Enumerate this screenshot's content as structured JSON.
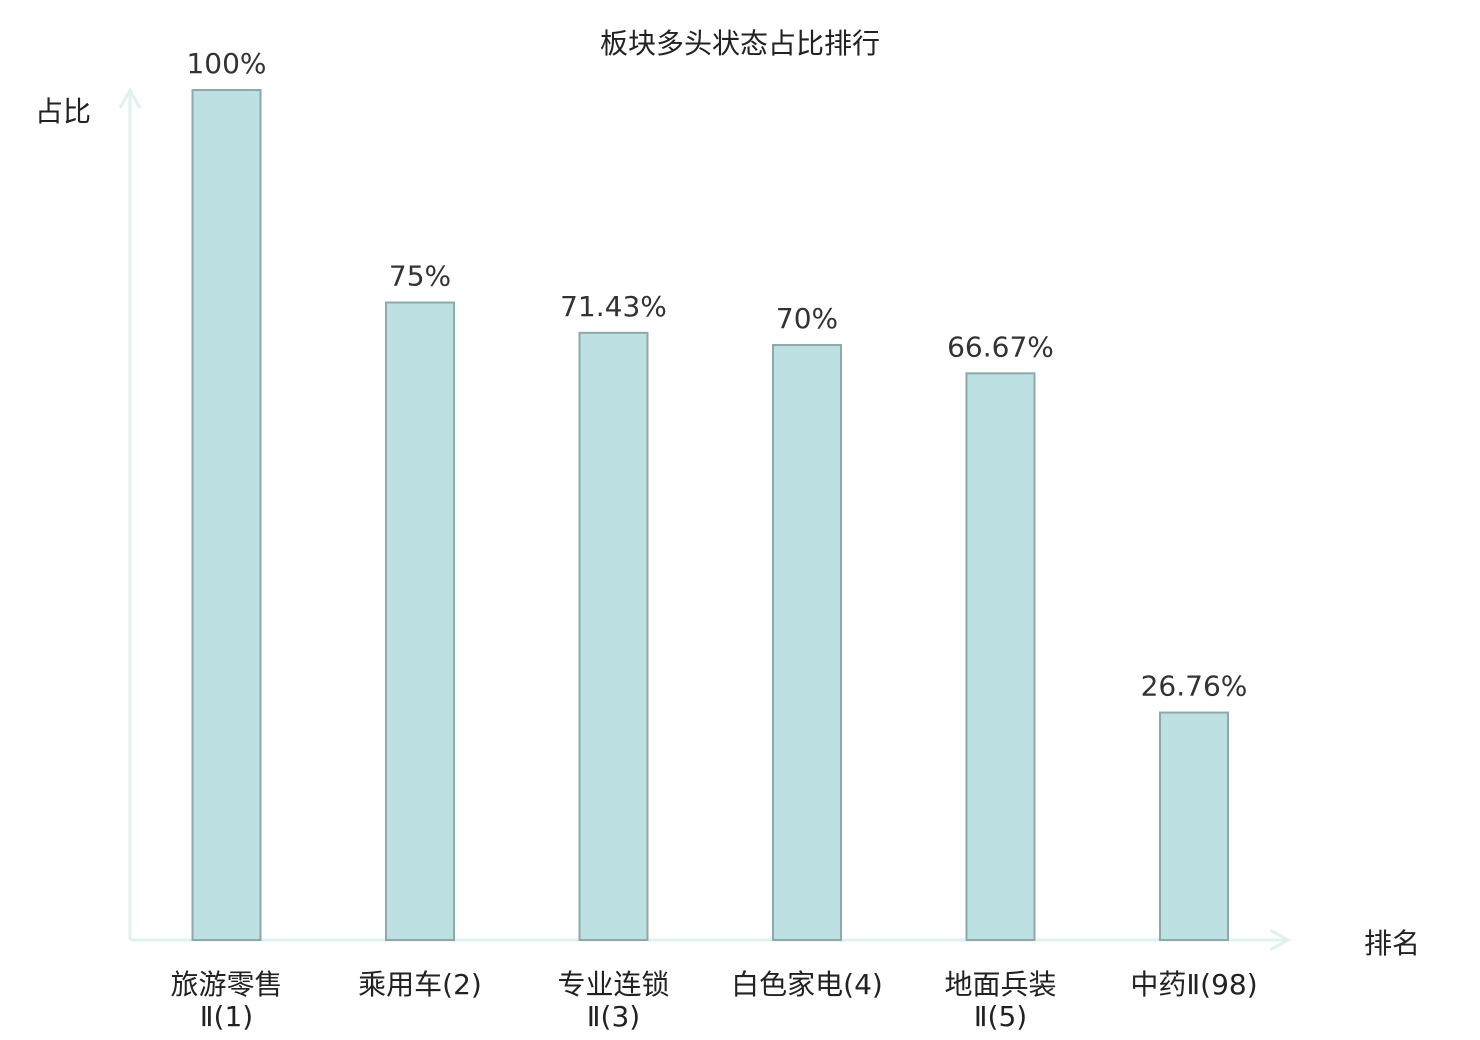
{
  "chart_data": {
    "type": "bar",
    "title": "板块多头状态占比排行",
    "xlabel": "排名",
    "ylabel": "占比",
    "ylim": [
      0,
      100
    ],
    "grid": false,
    "categories": [
      {
        "line1": "旅游零售",
        "line2": "Ⅱ(1)"
      },
      {
        "line1": "乘用车(2)",
        "line2": ""
      },
      {
        "line1": "专业连锁",
        "line2": "Ⅱ(3)"
      },
      {
        "line1": "白色家电(4)",
        "line2": ""
      },
      {
        "line1": "地面兵装",
        "line2": "Ⅱ(5)"
      },
      {
        "line1": "中药Ⅱ(98)",
        "line2": ""
      }
    ],
    "values": [
      100,
      75,
      71.43,
      70,
      66.67,
      26.76
    ],
    "value_labels": [
      "100%",
      "75%",
      "71.43%",
      "70%",
      "66.67%",
      "26.76%"
    ],
    "highlight_index": 5,
    "colors": {
      "bar_fill": "#bde0e3",
      "bar_stroke": "#8fa9ab",
      "axis": "#e0f2ef",
      "highlight_text": "#e8201a",
      "text": "#222222"
    }
  }
}
